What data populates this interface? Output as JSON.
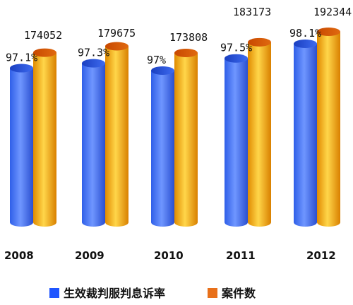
{
  "chart_data": {
    "type": "bar",
    "categories": [
      "2008",
      "2009",
      "2010",
      "2011",
      "2012"
    ],
    "series": [
      {
        "name": "生效裁判服判息诉率",
        "values": [
          97.1,
          97.3,
          97,
          97.5,
          98.1
        ],
        "labels": [
          "97.1%",
          "97.3%",
          "97%",
          "97.5%",
          "98.1%"
        ],
        "color": "#3f6ff0"
      },
      {
        "name": "案件数",
        "values": [
          174052,
          179675,
          173808,
          183173,
          192344
        ],
        "labels": [
          "174052",
          "179675",
          "173808",
          "183173",
          "192344"
        ],
        "color": "#f0a000"
      }
    ],
    "title": "",
    "xlabel": "",
    "ylabel": "",
    "legend": "bottom",
    "grid": false
  }
}
